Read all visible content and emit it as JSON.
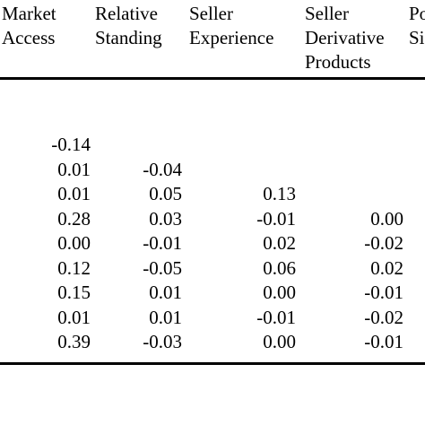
{
  "table": {
    "headers": [
      [
        "Market",
        "Access"
      ],
      [
        "Relative",
        "Standing"
      ],
      [
        "Seller",
        "Experience"
      ],
      [
        "Seller",
        "Derivative",
        "Products"
      ],
      [
        "Po",
        "Si"
      ]
    ],
    "rows": [
      [
        "-0.14",
        "",
        "",
        ""
      ],
      [
        "0.01",
        "-0.04",
        "",
        ""
      ],
      [
        "0.01",
        "0.05",
        "0.13",
        ""
      ],
      [
        "0.28",
        "0.03",
        "-0.01",
        "0.00"
      ],
      [
        "0.00",
        "-0.01",
        "0.02",
        "-0.02"
      ],
      [
        "0.12",
        "-0.05",
        "0.06",
        "0.02"
      ],
      [
        "0.15",
        "0.01",
        "0.00",
        "-0.01"
      ],
      [
        "0.01",
        "0.01",
        "-0.01",
        "-0.02"
      ],
      [
        "0.39",
        "-0.03",
        "0.00",
        "-0.01"
      ]
    ]
  }
}
